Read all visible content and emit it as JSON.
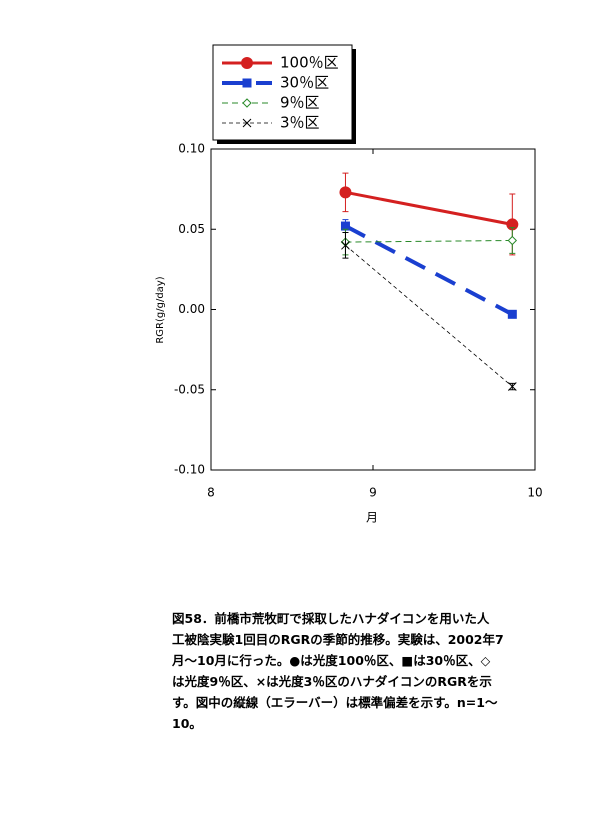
{
  "chart_data": {
    "type": "line",
    "x": [
      8.83,
      9.86
    ],
    "xlim": [
      8,
      10
    ],
    "xticks": [
      8,
      9,
      10
    ],
    "ylim": [
      -0.1,
      0.1
    ],
    "yticks": [
      {
        "value": 0.1,
        "label": "0.10"
      },
      {
        "value": 0.05,
        "label": "0.05"
      },
      {
        "value": 0,
        "label": "0.00"
      },
      {
        "value": -0.05,
        "label": "-0.05"
      },
      {
        "value": -0.1,
        "label": "-0.10"
      }
    ],
    "x_label": "月",
    "y_label": "RGR(g/g/day)",
    "series": [
      {
        "name": "100％区",
        "color": "#d42020",
        "marker": "circle",
        "values": [
          0.073,
          0.053
        ],
        "errors": [
          0.012,
          0.019
        ]
      },
      {
        "name": "30％区",
        "color": "#1a3fd0",
        "marker": "square",
        "values": [
          0.052,
          -0.003
        ],
        "errors": [
          0.004,
          0.002
        ]
      },
      {
        "name": "9％区",
        "color": "#2a8a2a",
        "marker": "diamond",
        "values": [
          0.042,
          0.043
        ],
        "errors": [
          0.008,
          0.008
        ]
      },
      {
        "name": "3％区",
        "color": "#000000",
        "marker": "x",
        "values": [
          0.04,
          -0.048
        ],
        "errors": [
          0.008,
          0.002
        ]
      }
    ]
  },
  "caption_lines": [
    "図58．前橋市荒牧町で採取したハナダイコンを用いた人",
    "工被陰実験1回目のRGRの季節的推移。実験は、2002年7",
    "月～10月に行った。●は光度100％区、■は30％区、◇",
    "は光度9％区、×は光度3％区のハナダイコンのRGRを示",
    "す。図中の縦線（エラーバー）は標準偏差を示す。n=1～",
    "10。"
  ]
}
